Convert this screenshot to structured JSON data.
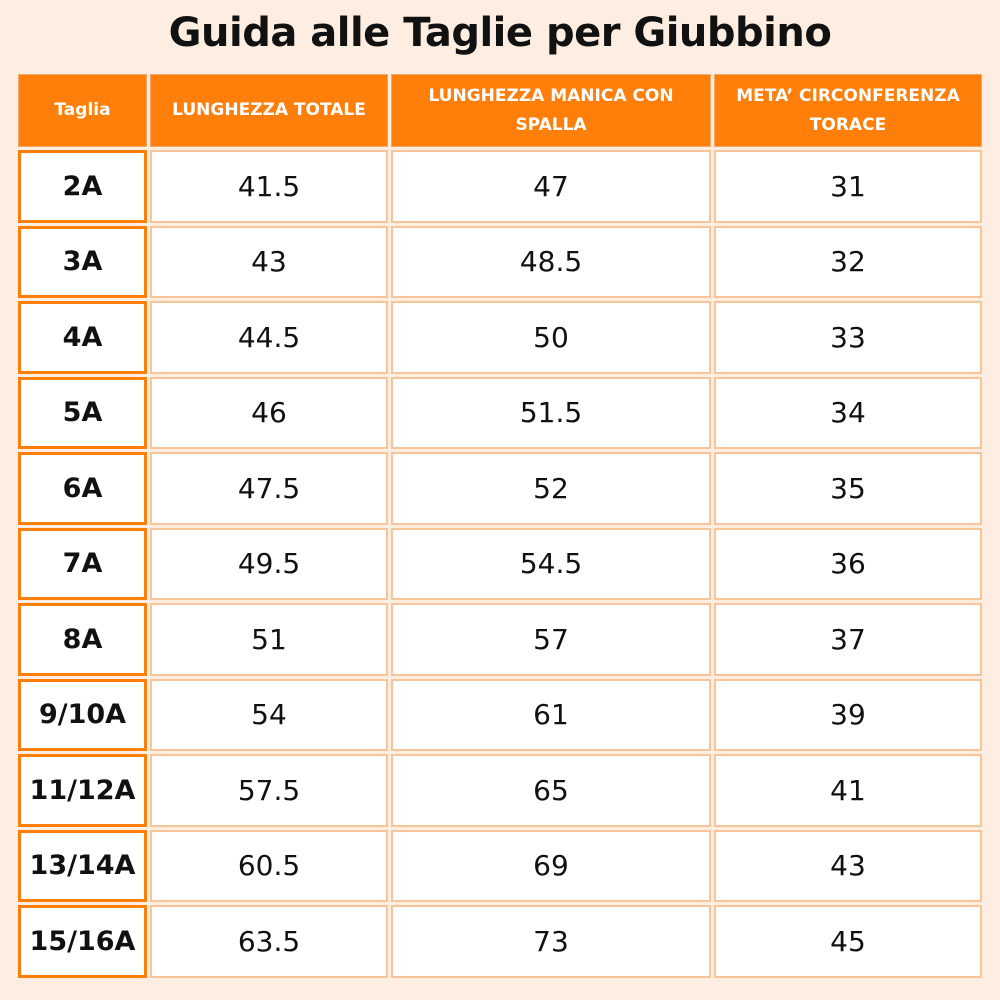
{
  "title": "Guida alle Taglie per Giubbino",
  "table": {
    "header": [
      "Taglia",
      "LUNGHEZZA TOTALE",
      "LUNGHEZZA MANICA CON SPALLA",
      "META’ CIRCONFERENZA TORACE"
    ],
    "rows": [
      [
        "2A",
        "41.5",
        "47",
        "31"
      ],
      [
        "3A",
        "43",
        "48.5",
        "32"
      ],
      [
        "4A",
        "44.5",
        "50",
        "33"
      ],
      [
        "5A",
        "46",
        "51.5",
        "34"
      ],
      [
        "6A",
        "47.5",
        "52",
        "35"
      ],
      [
        "7A",
        "49.5",
        "54.5",
        "36"
      ],
      [
        "8A",
        "51",
        "57",
        "37"
      ],
      [
        "9/10A",
        "54",
        "61",
        "39"
      ],
      [
        "11/12A",
        "57.5",
        "65",
        "41"
      ],
      [
        "13/14A",
        "60.5",
        "69",
        "43"
      ],
      [
        "15/16A",
        "63.5",
        "73",
        "45"
      ]
    ]
  }
}
